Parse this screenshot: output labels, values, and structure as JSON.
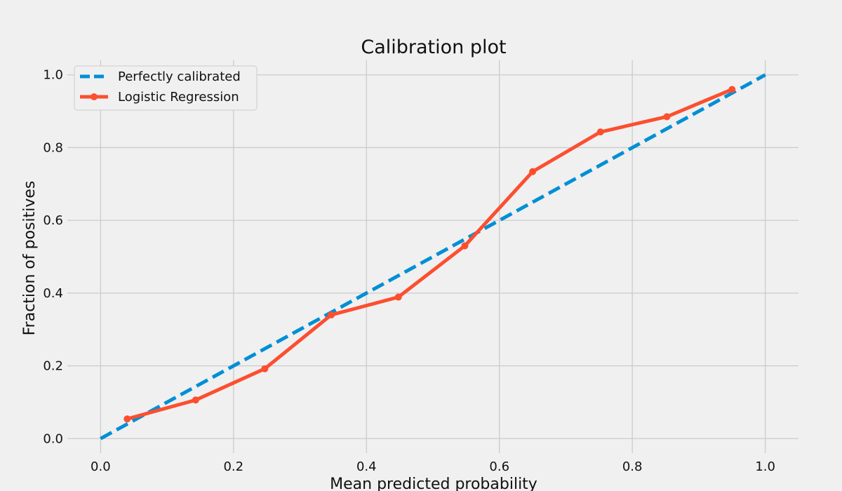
{
  "chart_data": {
    "type": "line",
    "title": "Calibration plot",
    "xlabel": "Mean predicted probability",
    "ylabel": "Fraction of positives",
    "xlim": [
      -0.05,
      1.05
    ],
    "ylim": [
      -0.04,
      1.04
    ],
    "xticks": [
      "0.0",
      "0.2",
      "0.4",
      "0.6",
      "0.8",
      "1.0"
    ],
    "yticks": [
      "0.0",
      "0.2",
      "0.4",
      "0.6",
      "0.8",
      "1.0"
    ],
    "grid": true,
    "legend_position": "top-left",
    "series": [
      {
        "name": "Perfectly calibrated",
        "color": "#008fd5",
        "style": "dashed",
        "x": [
          0.0,
          1.0
        ],
        "y": [
          0.0,
          1.0
        ]
      },
      {
        "name": "Logistic Regression",
        "color": "#fc4f30",
        "style": "solid-markers",
        "x": [
          0.04,
          0.143,
          0.247,
          0.347,
          0.448,
          0.548,
          0.65,
          0.752,
          0.852,
          0.95
        ],
        "y": [
          0.054,
          0.106,
          0.192,
          0.34,
          0.389,
          0.53,
          0.734,
          0.843,
          0.885,
          0.96
        ]
      }
    ]
  }
}
